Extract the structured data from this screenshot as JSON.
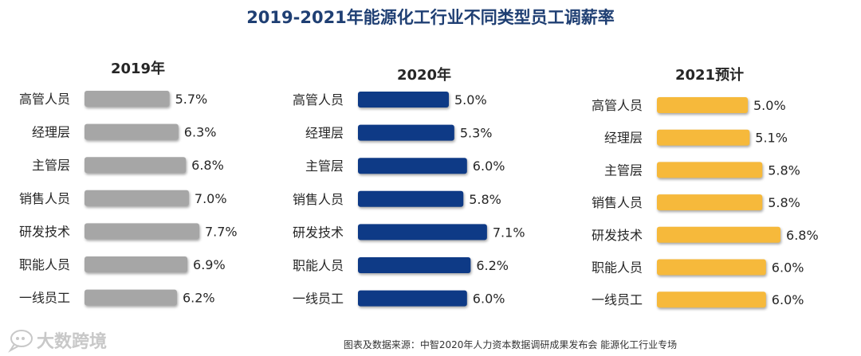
{
  "title": "2019-2021年能源化工行业不同类型员工调薪率",
  "source": "图表及数据来源：中智2020年人力资本数据调研成果发布会 能源化工行业专场",
  "watermark": "大数跨境",
  "watermark_icon": "chat-bubble-logo-icon",
  "chart_data": [
    {
      "type": "bar",
      "orientation": "horizontal",
      "title": "2019年",
      "color": "#a6a6a6",
      "categories": [
        "高管人员",
        "经理层",
        "主管层",
        "销售人员",
        "研发技术",
        "职能人员",
        "一线员工"
      ],
      "values": [
        5.7,
        6.3,
        6.8,
        7.0,
        7.7,
        6.9,
        6.2
      ],
      "labels": [
        "5.7%",
        "6.3%",
        "6.8%",
        "7.0%",
        "7.7%",
        "6.9%",
        "6.2%"
      ],
      "unit": "%",
      "grid": false
    },
    {
      "type": "bar",
      "orientation": "horizontal",
      "title": "2020年",
      "color": "#0e3a86",
      "categories": [
        "高管人员",
        "经理层",
        "主管层",
        "销售人员",
        "研发技术",
        "职能人员",
        "一线员工"
      ],
      "values": [
        5.0,
        5.3,
        6.0,
        5.8,
        7.1,
        6.2,
        6.0
      ],
      "labels": [
        "5.0%",
        "5.3%",
        "6.0%",
        "5.8%",
        "7.1%",
        "6.2%",
        "6.0%"
      ],
      "unit": "%",
      "grid": false
    },
    {
      "type": "bar",
      "orientation": "horizontal",
      "title": "2021预计",
      "color": "#f6b93b",
      "categories": [
        "高管人员",
        "经理层",
        "主管层",
        "销售人员",
        "研发技术",
        "职能人员",
        "一线员工"
      ],
      "values": [
        5.0,
        5.1,
        5.8,
        5.8,
        6.8,
        6.0,
        6.0
      ],
      "labels": [
        "5.0%",
        "5.1%",
        "5.8%",
        "5.8%",
        "6.8%",
        "6.0%",
        "6.0%"
      ],
      "unit": "%",
      "grid": false
    }
  ]
}
